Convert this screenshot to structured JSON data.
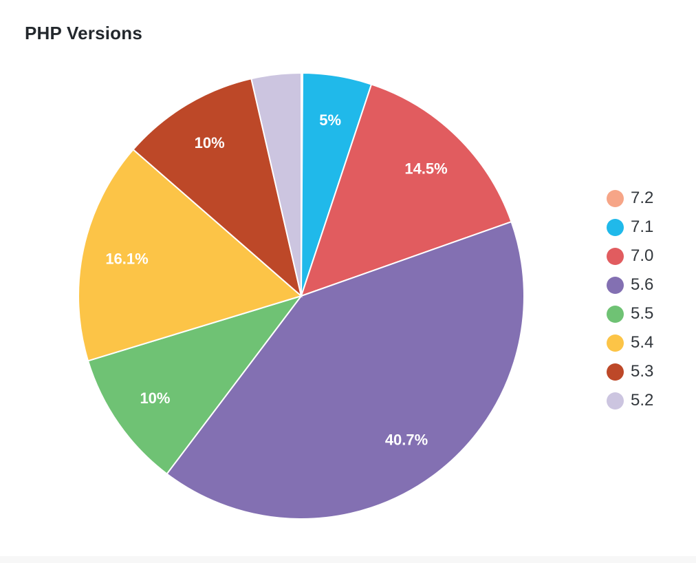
{
  "chart_data": {
    "type": "pie",
    "title": "PHP Versions",
    "legend_position": "right",
    "slices": [
      {
        "label": "7.2",
        "value": 0.1,
        "display": "",
        "color": "#f6a587"
      },
      {
        "label": "7.1",
        "value": 5.0,
        "display": "5%",
        "color": "#20b9ea"
      },
      {
        "label": "7.0",
        "value": 14.5,
        "display": "14.5%",
        "color": "#e15c5f"
      },
      {
        "label": "5.6",
        "value": 40.7,
        "display": "40.7%",
        "color": "#8370b2"
      },
      {
        "label": "5.5",
        "value": 10.0,
        "display": "10%",
        "color": "#6fc274"
      },
      {
        "label": "5.4",
        "value": 16.1,
        "display": "16.1%",
        "color": "#fcc447"
      },
      {
        "label": "5.3",
        "value": 10.0,
        "display": "10%",
        "color": "#bd4828"
      },
      {
        "label": "5.2",
        "value": 3.6,
        "display": "",
        "color": "#ccc5e0"
      }
    ]
  }
}
